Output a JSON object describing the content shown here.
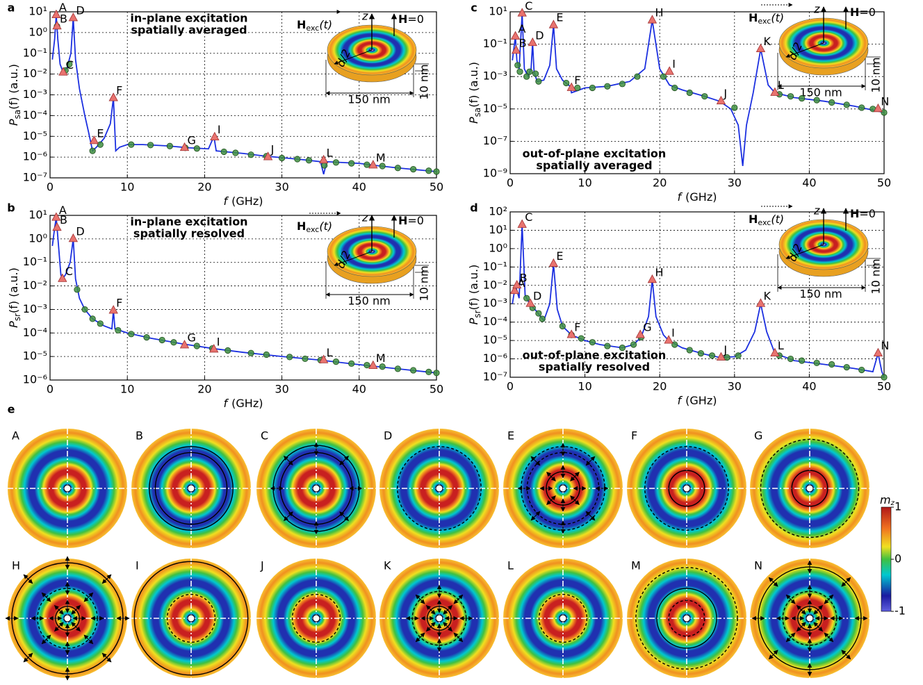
{
  "chart_data": [
    {
      "type": "line",
      "panel": "a",
      "annotation": [
        "in-plane excitation",
        "spatially averaged"
      ],
      "xlabel": [
        "f",
        "(GHz)"
      ],
      "ylabel": [
        "P",
        "sa",
        "(f) (a.u.)"
      ],
      "yscale": "log",
      "grid": true,
      "xlim": [
        0,
        50
      ],
      "ylim": [
        1e-07,
        10
      ],
      "xticks": [
        0,
        10,
        20,
        30,
        40,
        50
      ],
      "yticks": [
        {
          "value": 10,
          "label": "10¹"
        },
        {
          "value": 1,
          "label": "10⁰"
        },
        {
          "value": 0.1,
          "label": "10⁻¹"
        },
        {
          "value": 0.01,
          "label": "10⁻²"
        },
        {
          "value": 0.001,
          "label": "10⁻³"
        },
        {
          "value": 0.0001,
          "label": "10⁻⁴"
        },
        {
          "value": 1e-05,
          "label": "10⁻⁵"
        },
        {
          "value": 1e-06,
          "label": "10⁻⁶"
        },
        {
          "value": 1e-07,
          "label": "10⁻⁷"
        }
      ],
      "series": [
        {
          "color": "#1b2fe0",
          "marker": "none",
          "x": [
            0.3,
            0.6,
            0.8,
            1.0,
            1.3,
            1.7,
            2.2,
            2.7,
            3.0,
            3.3,
            3.8,
            4.5,
            5.0,
            5.5,
            6.0,
            7.0,
            7.8,
            8.2,
            8.5,
            9.0,
            10,
            12,
            15,
            18,
            20.5,
            21.2,
            21.5,
            25,
            28,
            32,
            35.0,
            35.4,
            35.8,
            40,
            42,
            45,
            50
          ],
          "values": [
            0.05,
            0.5,
            7,
            0.5,
            0.03,
            0.012,
            0.02,
            0.1,
            5,
            0.05,
            0.002,
            0.0001,
            1.5e-05,
            2e-06,
            3e-06,
            8e-06,
            4e-05,
            0.0007,
            2e-06,
            3e-06,
            4e-06,
            4e-06,
            3.5e-06,
            2.8e-06,
            2.5e-06,
            1e-05,
            2e-06,
            1.5e-06,
            1.1e-06,
            8e-07,
            6e-07,
            1.5e-07,
            6e-07,
            5e-07,
            4e-07,
            3e-07,
            2e-07
          ]
        },
        {
          "color": "#3f8f3f",
          "marker": "circle",
          "x": [
            0.9,
            2.0,
            2.5,
            5.5,
            6.5,
            10.5,
            13,
            15.5,
            17.5,
            19,
            22.5,
            24,
            26,
            28,
            30,
            32,
            33.5,
            35.5,
            37,
            39,
            41,
            43,
            45,
            47,
            49,
            50
          ],
          "values": [
            2,
            0.015,
            0.03,
            2e-06,
            4e-06,
            4e-06,
            3.8e-06,
            3.4e-06,
            2.8e-06,
            2.6e-06,
            1.8e-06,
            1.6e-06,
            1.3e-06,
            1.1e-06,
            9e-07,
            8e-07,
            7e-07,
            4e-07,
            5.5e-07,
            5e-07,
            4.3e-07,
            3.7e-07,
            3e-07,
            2.6e-07,
            2.2e-07,
            2e-07
          ]
        }
      ],
      "peaks": {
        "color": "#e8736f",
        "labels": [
          "A",
          "B",
          "C",
          "D",
          "E",
          "F",
          "G",
          "I",
          "J",
          "L",
          "M"
        ],
        "x": [
          0.8,
          0.9,
          1.7,
          3.0,
          5.7,
          8.2,
          17.4,
          21.3,
          28.2,
          35.4,
          41.8
        ],
        "values": [
          7,
          2,
          0.012,
          5,
          6e-06,
          0.0007,
          2.8e-06,
          9e-06,
          1e-06,
          7e-07,
          4e-07
        ]
      }
    },
    {
      "type": "line",
      "panel": "b",
      "annotation": [
        "in-plane excitation",
        "spatially resolved"
      ],
      "xlabel": [
        "f",
        "(GHz)"
      ],
      "ylabel": [
        "P",
        "sr",
        "(f) (a.u.)"
      ],
      "yscale": "log",
      "grid": true,
      "xlim": [
        0,
        50
      ],
      "ylim": [
        1e-06,
        10
      ],
      "xticks": [
        0,
        10,
        20,
        30,
        40,
        50
      ],
      "yticks": [
        {
          "value": 10,
          "label": "10¹"
        },
        {
          "value": 1,
          "label": "10⁰"
        },
        {
          "value": 0.1,
          "label": "10⁻¹"
        },
        {
          "value": 0.01,
          "label": "10⁻²"
        },
        {
          "value": 0.001,
          "label": "10⁻³"
        },
        {
          "value": 0.0001,
          "label": "10⁻⁴"
        },
        {
          "value": 1e-05,
          "label": "10⁻⁵"
        },
        {
          "value": 1e-06,
          "label": "10⁻⁶"
        }
      ],
      "series": [
        {
          "color": "#1b2fe0",
          "marker": "none",
          "x": [
            0.3,
            0.6,
            0.8,
            1.1,
            1.4,
            1.6,
            2.0,
            2.6,
            3.0,
            3.3,
            3.8,
            4.5,
            5.5,
            7,
            8.0,
            8.2,
            8.4,
            10,
            13,
            17,
            21,
            25,
            30,
            35,
            40,
            45,
            50
          ],
          "values": [
            0.5,
            3,
            8,
            0.5,
            0.03,
            0.02,
            0.03,
            0.1,
            1,
            0.02,
            0.003,
            0.001,
            0.0004,
            0.0002,
            0.00015,
            0.0009,
            0.00015,
            0.0001,
            6e-05,
            3.5e-05,
            2.2e-05,
            1.5e-05,
            1e-05,
            7e-06,
            4.5e-06,
            3e-06,
            2e-06
          ]
        },
        {
          "color": "#3f8f3f",
          "marker": "circle",
          "x": [
            3.5,
            4.5,
            5.5,
            6.5,
            8.8,
            10.5,
            12.5,
            14.5,
            16,
            19,
            21,
            23,
            26,
            28,
            31,
            33,
            35,
            37,
            39,
            41,
            43,
            45,
            47,
            49,
            50
          ],
          "values": [
            0.007,
            0.001,
            0.0004,
            0.00025,
            0.00013,
            9e-05,
            6.5e-05,
            5e-05,
            4e-05,
            2.8e-05,
            2.2e-05,
            1.8e-05,
            1.4e-05,
            1.2e-05,
            9.5e-06,
            8e-06,
            7e-06,
            6e-06,
            5e-06,
            4.3e-06,
            3.7e-06,
            3e-06,
            2.6e-06,
            2.2e-06,
            2e-06
          ]
        }
      ],
      "peaks": {
        "color": "#e8736f",
        "labels": [
          "A",
          "B",
          "C",
          "D",
          "F",
          "G",
          "I",
          "L",
          "M"
        ],
        "x": [
          0.8,
          0.9,
          1.6,
          3.0,
          8.2,
          17.4,
          21.2,
          35.4,
          41.8
        ],
        "values": [
          8,
          3,
          0.02,
          1,
          0.0009,
          3e-05,
          2e-05,
          7e-06,
          4e-06
        ]
      }
    },
    {
      "type": "line",
      "panel": "c",
      "annotation": [
        "out-of-plane excitation",
        "spatially averaged"
      ],
      "xlabel": [
        "f",
        "(GHz)"
      ],
      "ylabel": [
        "P",
        "sa",
        "(f) (a.u.)"
      ],
      "yscale": "log",
      "grid": true,
      "xlim": [
        0,
        50
      ],
      "ylim": [
        1e-09,
        10
      ],
      "xticks": [
        0,
        10,
        20,
        30,
        40,
        50
      ],
      "yticks": [
        {
          "value": 10,
          "label": "10¹"
        },
        {
          "value": 0.1,
          "label": "10⁻¹"
        },
        {
          "value": 0.001,
          "label": "10⁻³"
        },
        {
          "value": 1e-05,
          "label": "10⁻⁵"
        },
        {
          "value": 1e-07,
          "label": "10⁻⁷"
        },
        {
          "value": 1e-09,
          "label": "10⁻⁹"
        }
      ],
      "series": [
        {
          "color": "#1b2fe0",
          "marker": "none",
          "x": [
            0.3,
            0.7,
            0.9,
            1.2,
            1.6,
            1.9,
            2.4,
            2.8,
            3.0,
            3.2,
            3.6,
            4.5,
            5.3,
            5.8,
            6.2,
            7,
            8,
            8.2,
            10,
            13,
            16,
            18,
            19,
            20,
            21.3,
            23,
            26,
            28,
            29.5,
            30.5,
            31.1,
            31.6,
            32.5,
            33.5,
            34.5,
            35.4,
            38,
            42,
            46,
            50
          ],
          "values": [
            0.01,
            0.3,
            0.01,
            0.003,
            8,
            0.003,
            0.001,
            0.003,
            0.12,
            0.002,
            0.0005,
            0.0006,
            0.005,
            1.5,
            0.003,
            0.0006,
            0.00025,
            0.0001,
            0.0002,
            0.00025,
            0.0005,
            0.003,
            3,
            0.003,
            0.0003,
            0.00015,
            6e-05,
            3e-05,
            1e-05,
            1e-06,
            3e-09,
            1e-06,
            0.0001,
            0.05,
            0.0003,
            0.0001,
            5e-05,
            3e-05,
            1.5e-05,
            6e-06
          ]
        },
        {
          "color": "#3f8f3f",
          "marker": "circle",
          "x": [
            1.0,
            1.3,
            2.2,
            2.6,
            3.4,
            3.8,
            7.5,
            9,
            11,
            13,
            15,
            17,
            20.5,
            22,
            24,
            26,
            30,
            36,
            37.5,
            39,
            41,
            43,
            45,
            47,
            48.5,
            50
          ],
          "values": [
            0.005,
            0.002,
            0.001,
            0.002,
            0.0015,
            0.0005,
            0.0004,
            0.0002,
            0.0002,
            0.00025,
            0.00035,
            0.001,
            0.001,
            0.0002,
            0.0001,
            6e-05,
            1.2e-05,
            8e-05,
            6e-05,
            4.5e-05,
            3.5e-05,
            2.5e-05,
            1.8e-05,
            1.2e-05,
            1e-05,
            6e-06
          ]
        }
      ],
      "peaks": {
        "color": "#e8736f",
        "labels": [
          "A",
          "B",
          "C",
          "D",
          "E",
          "F",
          "H",
          "I",
          "J",
          "K",
          "L",
          "N"
        ],
        "x": [
          0.7,
          0.8,
          1.6,
          3.0,
          5.8,
          8.2,
          19.0,
          21.3,
          28.2,
          33.5,
          35.4,
          49.2
        ],
        "values": [
          0.3,
          0.04,
          8,
          0.12,
          1.5,
          0.0002,
          3,
          0.002,
          3e-05,
          0.05,
          0.0001,
          1e-05
        ]
      }
    },
    {
      "type": "line",
      "panel": "d",
      "annotation": [
        "out-of-plane excitation",
        "spatially resolved"
      ],
      "xlabel": [
        "f",
        "(GHz)"
      ],
      "ylabel": [
        "P",
        "sr",
        "(f) (a.u.)"
      ],
      "yscale": "log",
      "grid": true,
      "xlim": [
        0,
        50
      ],
      "ylim": [
        1e-07,
        100
      ],
      "xticks": [
        0,
        10,
        20,
        30,
        40,
        50
      ],
      "yticks": [
        {
          "value": 100,
          "label": "10²"
        },
        {
          "value": 10,
          "label": "10¹"
        },
        {
          "value": 1,
          "label": "10⁰"
        },
        {
          "value": 0.1,
          "label": "10⁻¹"
        },
        {
          "value": 0.01,
          "label": "10⁻²"
        },
        {
          "value": 0.001,
          "label": "10⁻³"
        },
        {
          "value": 0.0001,
          "label": "10⁻⁴"
        },
        {
          "value": 1e-05,
          "label": "10⁻⁵"
        },
        {
          "value": 1e-06,
          "label": "10⁻⁶"
        },
        {
          "value": 1e-07,
          "label": "10⁻⁷"
        }
      ],
      "series": [
        {
          "color": "#1b2fe0",
          "marker": "none",
          "x": [
            0.3,
            0.7,
            1.2,
            1.6,
            2.0,
            2.6,
            3.5,
            4.5,
            5.3,
            5.8,
            6.3,
            7,
            8.2,
            10,
            12,
            15,
            16.5,
            17.5,
            18.5,
            19.0,
            19.5,
            20.5,
            21.2,
            23,
            26,
            28,
            30,
            31.5,
            32.7,
            33.5,
            34.3,
            35.4,
            38,
            42,
            46,
            48.5,
            49.2,
            49.7,
            50
          ],
          "values": [
            0.001,
            0.01,
            0.002,
            20,
            0.003,
            0.001,
            0.0004,
            0.00012,
            0.001,
            0.15,
            0.0005,
            6e-05,
            2e-05,
            1e-05,
            6e-06,
            4e-06,
            6e-06,
            1.5e-05,
            0.0002,
            0.02,
            0.0002,
            2e-05,
            1e-05,
            4e-06,
            1.8e-06,
            1.2e-06,
            1.3e-06,
            3e-06,
            3e-05,
            0.001,
            3e-05,
            2e-06,
            8e-07,
            5e-07,
            3e-07,
            2e-07,
            2e-06,
            2e-07,
            1e-07
          ]
        },
        {
          "color": "#3f8f3f",
          "marker": "circle",
          "x": [
            2.2,
            3.0,
            3.8,
            4.3,
            7.0,
            8.2,
            9.5,
            11,
            13,
            15,
            16.5,
            17.5,
            22,
            24,
            25.5,
            27,
            29,
            30.5,
            36,
            37.5,
            39,
            41,
            43,
            45,
            47,
            50
          ],
          "values": [
            0.002,
            0.0006,
            0.0003,
            0.00015,
            6e-05,
            2e-05,
            1.3e-05,
            8e-06,
            5e-06,
            4e-06,
            6e-06,
            1.5e-05,
            6e-06,
            3e-06,
            2e-06,
            1.5e-06,
            1.2e-06,
            1.5e-06,
            1.5e-06,
            1e-06,
            8e-07,
            6e-07,
            5e-07,
            3.5e-07,
            2.5e-07,
            1e-07
          ]
        }
      ],
      "peaks": {
        "color": "#e8736f",
        "labels": [
          "A",
          "B",
          "C",
          "D",
          "E",
          "F",
          "G",
          "H",
          "I",
          "J",
          "K",
          "L",
          "N"
        ],
        "x": [
          0.6,
          0.9,
          1.6,
          2.7,
          5.8,
          8.2,
          17.4,
          19.0,
          21.2,
          28.2,
          33.5,
          35.4,
          49.2
        ],
        "values": [
          0.005,
          0.01,
          20,
          0.001,
          0.15,
          2e-05,
          2e-05,
          0.02,
          1e-05,
          1.2e-06,
          0.001,
          2e-06,
          2e-06
        ]
      }
    }
  ],
  "inset": {
    "h_exc": [
      "H",
      "exc",
      "(t)"
    ],
    "z": "z",
    "h_zero": [
      "H",
      "=0"
    ],
    "radius": "d/2",
    "thickness": "10 nm",
    "diameter": "150 nm"
  },
  "panel_e": {
    "panel": "e",
    "modes": [
      "A",
      "B",
      "C",
      "D",
      "E",
      "F",
      "G",
      "H",
      "I",
      "J",
      "K",
      "L",
      "M",
      "N"
    ],
    "colorbar": {
      "label": [
        "m",
        "z"
      ],
      "lim": [
        -1,
        1
      ],
      "ticks": [
        1,
        0,
        -1
      ]
    }
  }
}
